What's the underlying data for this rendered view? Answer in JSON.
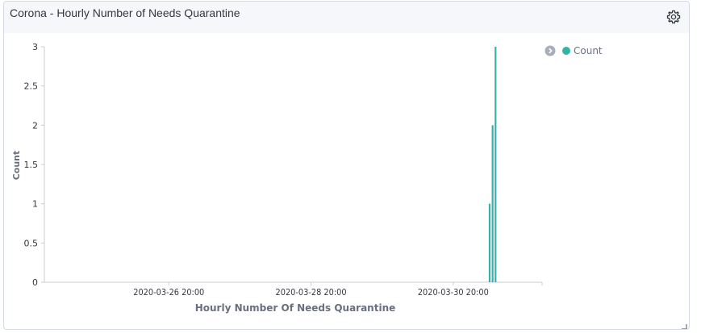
{
  "panel": {
    "title": "Corona - Hourly Number of Needs Quarantine"
  },
  "icons": {
    "settings": "gear-icon",
    "legend_toggle": "chevron-right-circle-icon",
    "resize": "resize-corner-icon"
  },
  "colors": {
    "bar": "#31b3a6",
    "axis": "#c9ced6",
    "header_bg": "#f5f7fa"
  },
  "legend": {
    "items": [
      {
        "label": "Count",
        "color": "#31b3a6"
      }
    ]
  },
  "chart_data": {
    "type": "bar",
    "title": "",
    "xlabel": "Hourly Number Of Needs Quarantine",
    "ylabel": "Count",
    "ylim": [
      0,
      3
    ],
    "yticks": [
      "0",
      "0.5",
      "1",
      "1.5",
      "2",
      "2.5",
      "3"
    ],
    "xticks": [
      "2020-03-26 20:00",
      "2020-03-28 20:00",
      "2020-03-30 20:00"
    ],
    "xrange": [
      "2020-03-25 02:00",
      "2020-04-01 02:00"
    ],
    "grid": false,
    "legend_position": "top-right",
    "series": [
      {
        "name": "Count",
        "x": [
          "2020-03-31 08:00",
          "2020-03-31 09:00",
          "2020-03-31 10:00"
        ],
        "values": [
          1,
          2,
          3
        ]
      }
    ]
  }
}
